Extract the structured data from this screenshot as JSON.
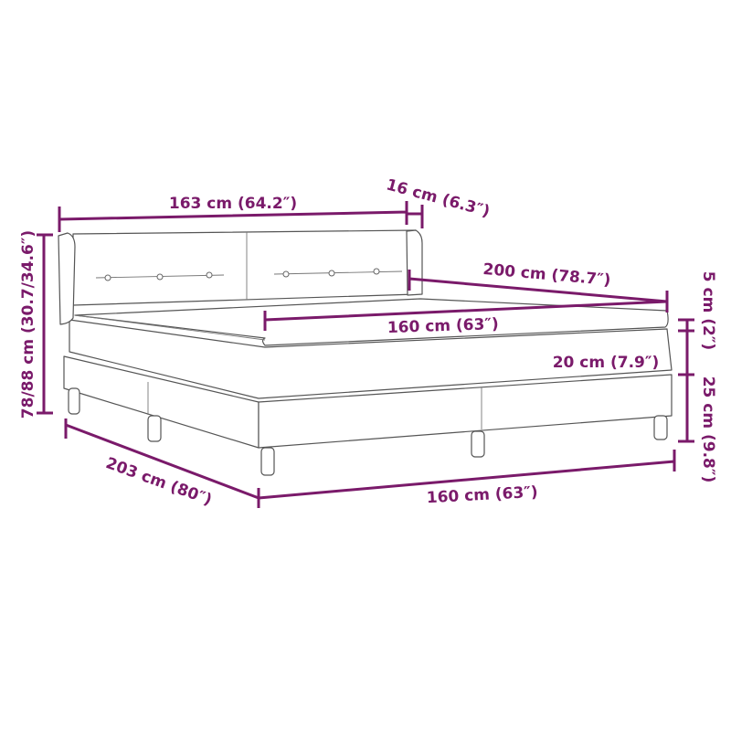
{
  "accent_color": "#7a1a6a",
  "dimensions": {
    "headboard_width": "163 cm (64.2″)",
    "headboard_depth": "16 cm (6.3″)",
    "total_height": "78/88 cm (30.7/34.6″)",
    "length": "200 cm (78.7″)",
    "mattress_width": "160 cm (63″)",
    "topper_height": "5 cm (2″)",
    "mattress_height": "20 cm (7.9″)",
    "base_height": "25 cm (9.8″)",
    "overall_length": "203 cm (80″)",
    "base_width": "160 cm (63″)"
  }
}
